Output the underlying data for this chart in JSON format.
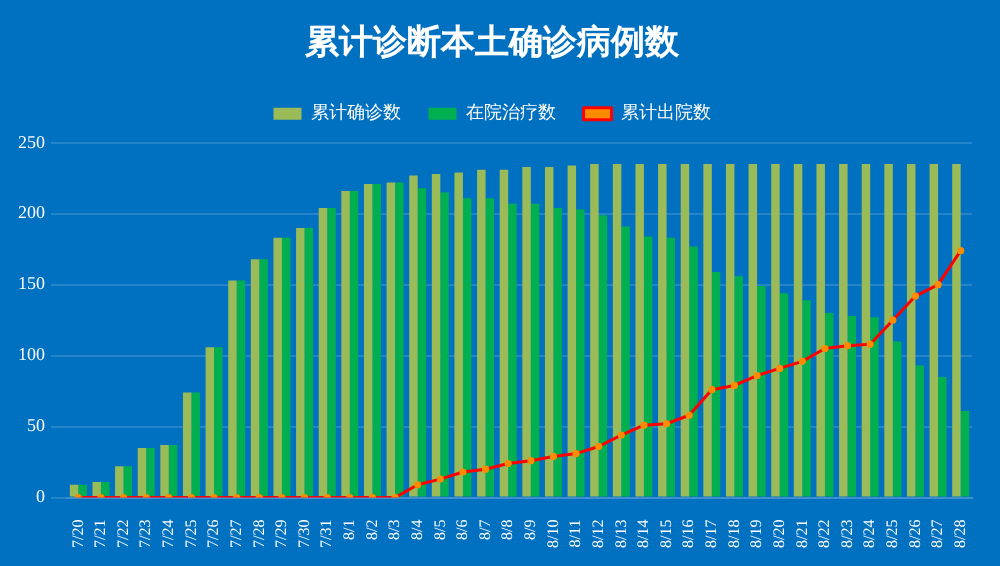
{
  "chart_data": {
    "type": "bar",
    "title": "累计诊断本土确诊病例数",
    "categories": [
      "7/20",
      "7/21",
      "7/22",
      "7/23",
      "7/24",
      "7/25",
      "7/26",
      "7/27",
      "7/28",
      "7/29",
      "7/30",
      "7/31",
      "8/1",
      "8/2",
      "8/3",
      "8/4",
      "8/5",
      "8/6",
      "8/7",
      "8/8",
      "8/9",
      "8/10",
      "8/11",
      "8/12",
      "8/13",
      "8/14",
      "8/15",
      "8/16",
      "8/17",
      "8/18",
      "8/19",
      "8/20",
      "8/21",
      "8/22",
      "8/23",
      "8/24",
      "8/25",
      "8/26",
      "8/27",
      "8/28"
    ],
    "series": [
      {
        "name": "累计确诊数",
        "color": "#9bbb59",
        "values": [
          9,
          11,
          22,
          35,
          37,
          74,
          106,
          153,
          168,
          183,
          190,
          204,
          216,
          221,
          222,
          227,
          228,
          229,
          231,
          231,
          233,
          233,
          234,
          235,
          235,
          235,
          235,
          235,
          235,
          235,
          235,
          235,
          235,
          235,
          235,
          235,
          235,
          235,
          235,
          235
        ]
      },
      {
        "name": "在院治疗数",
        "color": "#00b050",
        "values": [
          9,
          11,
          22,
          35,
          37,
          74,
          106,
          153,
          168,
          183,
          190,
          204,
          216,
          221,
          222,
          218,
          215,
          211,
          211,
          207,
          207,
          204,
          203,
          199,
          191,
          184,
          183,
          177,
          159,
          156,
          149,
          144,
          139,
          130,
          128,
          127,
          110,
          93,
          85,
          61
        ]
      },
      {
        "name": "累计出院数",
        "type": "line",
        "color": "#ff0000",
        "marker": "circle",
        "values": [
          0,
          0,
          0,
          0,
          0,
          0,
          0,
          0,
          0,
          0,
          0,
          0,
          0,
          0,
          0,
          9,
          13,
          18,
          20,
          24,
          26,
          29,
          31,
          36,
          44,
          51,
          52,
          58,
          76,
          79,
          86,
          91,
          96,
          105,
          107,
          108,
          125,
          142,
          150,
          174
        ]
      }
    ],
    "ylim": [
      0,
      250
    ],
    "yticks": [
      0,
      50,
      100,
      150,
      200,
      250
    ],
    "grid": "y",
    "legend": "top"
  }
}
